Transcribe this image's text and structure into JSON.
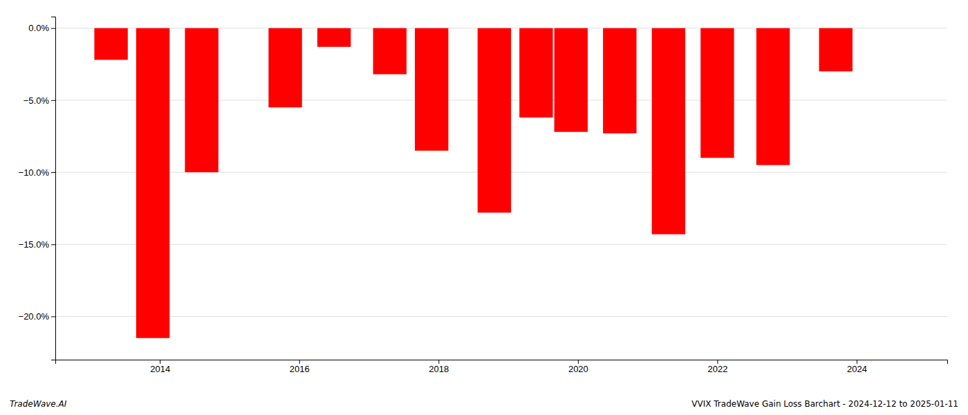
{
  "chart_data": {
    "type": "bar",
    "title": "VVIX TradeWave Gain Loss Barchart - 2024-12-12 to 2025-01-11",
    "annotations": [
      "TradeWave.AI"
    ],
    "x": [
      2013.3,
      2013.9,
      2014.6,
      2015.8,
      2016.5,
      2017.3,
      2017.9,
      2018.8,
      2019.4,
      2019.9,
      2020.6,
      2021.3,
      2022.0,
      2022.8,
      2023.7
    ],
    "values": [
      -2.2,
      -21.5,
      -10.0,
      -5.5,
      -1.3,
      -3.2,
      -8.5,
      -12.8,
      -6.2,
      -7.2,
      -7.3,
      -14.3,
      -9.0,
      -9.5,
      -3.0
    ],
    "color": "#ff0000",
    "xlim": [
      2012.5,
      2025.3
    ],
    "xticks": [
      2014,
      2016,
      2018,
      2020,
      2022,
      2024
    ],
    "ylim": [
      -23.0,
      0.8
    ],
    "yticks": [
      {
        "value": 0,
        "label": "0.0%"
      },
      {
        "value": -5,
        "label": "−5.0%"
      },
      {
        "value": -10,
        "label": "−10.0%"
      },
      {
        "value": -15,
        "label": "−15.0%"
      },
      {
        "value": -20,
        "label": "−20.0%"
      }
    ],
    "grid": true
  }
}
